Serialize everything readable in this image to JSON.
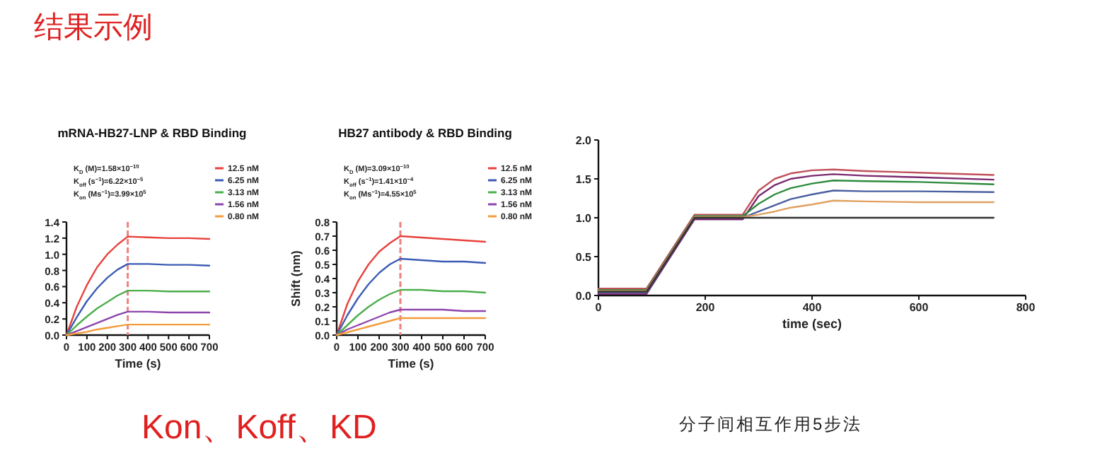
{
  "chart_data": [
    {
      "type": "line",
      "title": "mRNA-HB27-LNP & RBD Binding",
      "xlabel": "Time (s)",
      "x": [
        0,
        50,
        100,
        150,
        200,
        250,
        300,
        400,
        500,
        600,
        700
      ],
      "xlim": [
        0,
        700
      ],
      "xticks": [
        0,
        100,
        200,
        300,
        400,
        500,
        600,
        700
      ],
      "ylim": [
        0,
        1.4
      ],
      "yticks": [
        {
          "value": 0,
          "label": "0.0"
        },
        0.2,
        0.4,
        0.6,
        0.8,
        {
          "value": 1,
          "label": "1.0"
        },
        1.2,
        1.4
      ],
      "annotations": [
        "K$_{D}$ (M)=1.58×10$^{−10}$",
        "K$_{off}$ (s$^{−1}$)=6.22×10$^{−5}$",
        "K$_{on}$ (Ms$^{−1}$)=3.99×10$^{5}$"
      ],
      "ref_lines": [
        {
          "axis": "x",
          "value": 300,
          "color": "#f08080",
          "line_style": "dashed"
        }
      ],
      "legend": "top right",
      "series": [
        {
          "name": "12.5 nM",
          "color": "#e8413c",
          "values": [
            0,
            0.35,
            0.62,
            0.84,
            1.0,
            1.12,
            1.22,
            1.21,
            1.2,
            1.2,
            1.19
          ]
        },
        {
          "name": "6.25 nM",
          "color": "#3b5bb5",
          "values": [
            0,
            0.22,
            0.42,
            0.58,
            0.71,
            0.81,
            0.88,
            0.88,
            0.87,
            0.87,
            0.86
          ]
        },
        {
          "name": "3.13 nM",
          "color": "#4cae4c",
          "values": [
            0,
            0.12,
            0.23,
            0.33,
            0.41,
            0.49,
            0.55,
            0.55,
            0.54,
            0.54,
            0.54
          ]
        },
        {
          "name": "1.56 nM",
          "color": "#8e44ad",
          "values": [
            0,
            0.05,
            0.1,
            0.15,
            0.2,
            0.25,
            0.29,
            0.29,
            0.28,
            0.28,
            0.28
          ]
        },
        {
          "name": "0.80 nM",
          "color": "#f39c3c",
          "values": [
            0,
            0.02,
            0.04,
            0.07,
            0.09,
            0.11,
            0.13,
            0.13,
            0.13,
            0.13,
            0.13
          ]
        }
      ]
    },
    {
      "type": "line",
      "title": "HB27 antibody  & RBD Binding",
      "xlabel": "Time (s)",
      "ylabel": "Shift (nm)",
      "x": [
        0,
        50,
        100,
        150,
        200,
        250,
        300,
        400,
        500,
        600,
        700
      ],
      "xlim": [
        0,
        700
      ],
      "xticks": [
        0,
        100,
        200,
        300,
        400,
        500,
        600,
        700
      ],
      "ylim": [
        0,
        0.8
      ],
      "yticks": [
        {
          "value": 0,
          "label": "0.0"
        },
        0.1,
        0.2,
        0.3,
        0.4,
        0.5,
        0.6,
        0.7,
        0.8
      ],
      "annotations": [
        "K$_{D}$ (M)=3.09×10$^{−10}$",
        "K$_{off}$ (s$^{−1}$)=1.41×10$^{−4}$",
        "K$_{on}$ (Ms$^{−1}$)=4.55×10$^{5}$"
      ],
      "ref_lines": [
        {
          "axis": "x",
          "value": 300,
          "color": "#f08080",
          "line_style": "dashed"
        }
      ],
      "legend": "top right",
      "series": [
        {
          "name": "12.5 nM",
          "color": "#e8413c",
          "values": [
            0,
            0.22,
            0.38,
            0.5,
            0.59,
            0.65,
            0.7,
            0.69,
            0.68,
            0.67,
            0.66
          ]
        },
        {
          "name": "6.25 nM",
          "color": "#3b5bb5",
          "values": [
            0,
            0.14,
            0.26,
            0.36,
            0.44,
            0.5,
            0.54,
            0.53,
            0.52,
            0.52,
            0.51
          ]
        },
        {
          "name": "3.13 nM",
          "color": "#4cae4c",
          "values": [
            0,
            0.07,
            0.14,
            0.2,
            0.25,
            0.29,
            0.32,
            0.32,
            0.31,
            0.31,
            0.3
          ]
        },
        {
          "name": "1.56 nM",
          "color": "#8e44ad",
          "values": [
            0,
            0.04,
            0.07,
            0.1,
            0.13,
            0.16,
            0.18,
            0.18,
            0.18,
            0.17,
            0.17
          ]
        },
        {
          "name": "0.80 nM",
          "color": "#f39c3c",
          "values": [
            0,
            0.02,
            0.04,
            0.06,
            0.08,
            0.1,
            0.12,
            0.12,
            0.12,
            0.12,
            0.12
          ]
        }
      ]
    },
    {
      "type": "line",
      "xlabel": "time (sec)",
      "x": [
        0,
        90,
        180,
        270,
        300,
        330,
        360,
        400,
        440,
        500,
        600,
        740
      ],
      "xlim": [
        0,
        800
      ],
      "xticks": [
        0,
        200,
        400,
        600,
        800
      ],
      "ylim": [
        0,
        2
      ],
      "yticks": [
        {
          "value": 0,
          "label": "0.0"
        },
        0.5,
        {
          "value": 1,
          "label": "1.0"
        },
        1.5,
        {
          "value": 2,
          "label": "2.0"
        }
      ],
      "series": [
        {
          "color": "#c0505a",
          "values": [
            0.09,
            0.09,
            1.04,
            1.04,
            1.35,
            1.5,
            1.57,
            1.61,
            1.62,
            1.6,
            1.58,
            1.55
          ]
        },
        {
          "color": "#7b2a6e",
          "values": [
            0.02,
            0.02,
            0.98,
            0.98,
            1.28,
            1.42,
            1.5,
            1.54,
            1.56,
            1.54,
            1.52,
            1.49
          ]
        },
        {
          "color": "#2e8b3e",
          "values": [
            0.07,
            0.07,
            1.02,
            1.02,
            1.18,
            1.3,
            1.38,
            1.44,
            1.48,
            1.47,
            1.46,
            1.43
          ]
        },
        {
          "color": "#4a5fa0",
          "values": [
            0.04,
            0.04,
            1.0,
            1.0,
            1.08,
            1.16,
            1.24,
            1.3,
            1.35,
            1.34,
            1.34,
            1.33
          ]
        },
        {
          "color": "#e0a060",
          "values": [
            0.06,
            0.06,
            1.01,
            1.01,
            1.04,
            1.08,
            1.13,
            1.17,
            1.22,
            1.21,
            1.2,
            1.2
          ]
        },
        {
          "color": "#333333",
          "values": [
            0.05,
            0.05,
            1.0,
            1.0,
            1.0,
            1.0,
            1.0,
            1.0,
            1.0,
            1.0,
            1.0,
            1.0
          ]
        }
      ]
    },
    {
      "type": "other",
      "title": "结果示例",
      "annotations": [
        "Kon、Koff、KD",
        "分子间相互作用5步法"
      ]
    }
  ]
}
